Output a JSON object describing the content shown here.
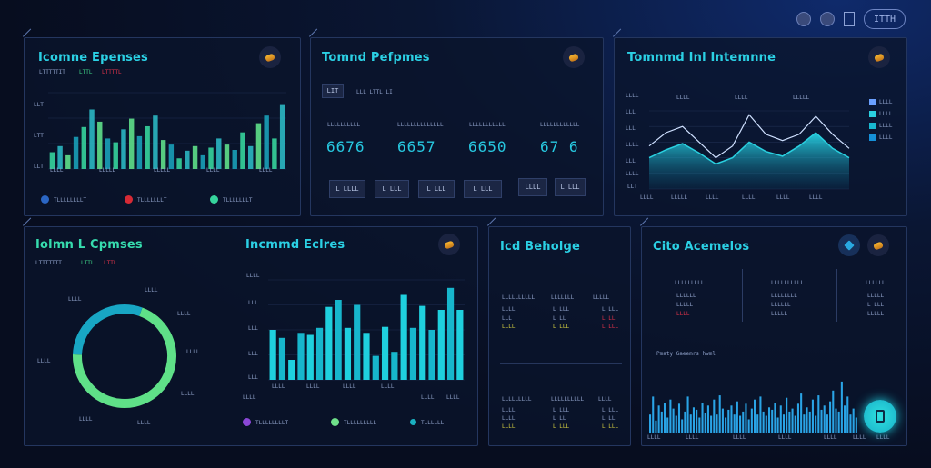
{
  "toolbar": {
    "pill_label": "ITTH"
  },
  "p1": {
    "title": "Icomne Epenses",
    "legend_small": [
      "LTTTTTIT",
      "LTTL",
      "LTTTTL"
    ],
    "axis_labels": [
      "LLT",
      "LTT",
      "LLT"
    ],
    "x_labels": [
      "LLLL",
      "LLLLL",
      "LLLLL",
      "LLLL",
      "LLLL"
    ],
    "legend": [
      "TLLLLLLLLT",
      "TLLLLLLLT",
      "TLLLLLLLT"
    ],
    "colors": [
      "#2b66c4",
      "#d62a35",
      "#36d49c"
    ]
  },
  "p2": {
    "title": "Tomnd Pefpmes",
    "filter_label": "LIT",
    "filter_text": "LLL LTTL LI",
    "metric_labels": [
      "LLLLLLLLLL",
      "LLLLLLLLLLLLLL",
      "LLLLLLLLLLL",
      "LLLLLLLLLLLL"
    ],
    "metrics": [
      "6676",
      "6657",
      "6650",
      "67 6"
    ],
    "buttons": [
      "L LLLL",
      "L LLL",
      "L LLL",
      "L LLL",
      "LLLL",
      "L LLL"
    ]
  },
  "p3": {
    "title": "Tomnmd Inl Intemnne",
    "top_labels": [
      "LLLL",
      "LLLL",
      "LLLLL"
    ],
    "y_labels": [
      "LLLL",
      "LLL",
      "LLL",
      "LLLL",
      "LLL",
      "LLLL",
      "LLT"
    ],
    "x_labels": [
      "LLLL",
      "LLLLL",
      "LLLL",
      "LLLL",
      "LLLL",
      "LLLL"
    ],
    "legend": [
      "LLLL",
      "LLLL",
      "LLLL",
      "LLLL"
    ],
    "legend_colors": [
      "#6aa0ff",
      "#2ad0e0",
      "#18b7d0",
      "#1590d8"
    ]
  },
  "p4": {
    "title": "Iolmn L Cpmses",
    "legend_small": [
      "LTTTTTTT",
      "LTTL",
      "LTTL"
    ],
    "donut_labels": [
      "LLLL",
      "LLLL",
      "LLLL",
      "LLLL",
      "LLLL",
      "LLLL",
      "LLLL"
    ],
    "bar_title": "Incmmd Eclres",
    "bar_y_labels": [
      "LLLL",
      "LLL",
      "LLL",
      "LLL",
      "LLL"
    ],
    "bar_x_labels": [
      "LLLL",
      "LLLL",
      "LLLL",
      "LLLL",
      "LLLL",
      "LLLL",
      "LLLL"
    ],
    "legend": [
      "TLLLLLLLLT",
      "TLLLLLLLLL",
      "TLLLLLL"
    ],
    "legend_colors": [
      "#8a47d6",
      "#6fe08a",
      "#1ab0c0"
    ]
  },
  "p5": {
    "title": "Icd Beholge",
    "headers": [
      "LLLLLLLLLL",
      "LLLLLLL",
      "LLLLL"
    ],
    "rows_top": [
      [
        "LLLL",
        "L LLL",
        "L LLL"
      ],
      [
        "LLL",
        "L LL",
        "L LL"
      ],
      [
        "LLLL",
        "L LLL",
        "L LLL"
      ]
    ],
    "headers_bottom": [
      "LLLLLLLLL",
      "LLLLLLLLLL",
      "LLLL"
    ],
    "rows_bottom": [
      [
        "LLLL",
        "L LLL",
        "L LLL"
      ],
      [
        "LLLL",
        "L LL",
        "L LL"
      ],
      [
        "LLLL",
        "L LLL",
        "L LLL"
      ]
    ]
  },
  "p6": {
    "title": "Cito Acemelos",
    "col_headers": [
      "LLLLLLLLL",
      "LLLLLLLLLL",
      "LLLLLL"
    ],
    "col1": [
      "LLLLLL",
      "LLLLL",
      "LLLL"
    ],
    "col2": [
      "LLLLLLLL",
      "LLLLLL",
      "LLLLL"
    ],
    "col3": [
      "LLLLL",
      "L LLL",
      "LLLLL"
    ],
    "section_label": "Pmaty Gaeemrs hwml",
    "x_labels": [
      "LLLL",
      "LLLL",
      "LLLL",
      "LLLL",
      "LLLL",
      "LLLL",
      "LLLL"
    ]
  },
  "chart_data": [
    {
      "type": "bar",
      "title": "Icomne Epenses",
      "values": [
        22,
        30,
        18,
        42,
        55,
        78,
        62,
        40,
        35,
        52,
        66,
        43,
        56,
        70,
        38,
        32,
        14,
        24,
        30,
        18,
        28,
        40,
        32,
        25,
        48,
        30,
        60,
        70,
        40,
        85
      ],
      "ylim": [
        0,
        100
      ]
    },
    {
      "type": "area",
      "title": "Tomnmd Inl Intemnne",
      "series": [
        {
          "values": [
            55,
            72,
            80,
            60,
            40,
            55,
            95,
            70,
            62,
            70,
            93,
            70,
            52
          ]
        },
        {
          "values": [
            40,
            50,
            58,
            46,
            32,
            40,
            60,
            48,
            42,
            55,
            72,
            52,
            40
          ]
        }
      ],
      "ylim": [
        0,
        100
      ]
    },
    {
      "type": "pie",
      "title": "Iolmn L Cpmses",
      "values": [
        70,
        30
      ],
      "colors": [
        "#5fe088",
        "#18a6c4"
      ]
    },
    {
      "type": "bar",
      "title": "Incmmd Eclres",
      "values": [
        50,
        42,
        20,
        47,
        45,
        52,
        73,
        80,
        52,
        75,
        47,
        24,
        53,
        28,
        85,
        52,
        74,
        50,
        70,
        92,
        70
      ],
      "ylim": [
        0,
        100
      ]
    },
    {
      "type": "bar",
      "title": "Pmaty Gaeemrs hwml",
      "values": [
        30,
        60,
        20,
        45,
        35,
        50,
        25,
        55,
        40,
        28,
        48,
        22,
        35,
        60,
        30,
        42,
        38,
        25,
        50,
        33,
        45,
        28,
        55,
        30,
        62,
        40,
        25,
        38,
        45,
        30,
        52,
        28,
        35,
        48,
        22,
        40,
        55,
        30,
        60,
        35,
        28,
        42,
        38,
        50,
        25,
        45,
        30,
        58,
        35,
        40,
        28,
        48,
        65,
        30,
        42,
        35,
        55,
        28,
        62,
        38,
        45,
        30,
        52,
        70,
        40,
        35,
        85,
        45,
        60,
        30,
        40,
        25
      ],
      "ylim": [
        0,
        100
      ]
    }
  ]
}
